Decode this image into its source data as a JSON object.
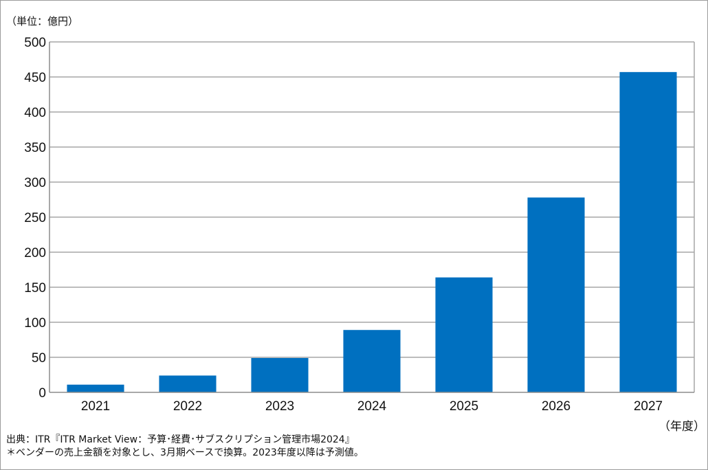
{
  "chart_data": {
    "type": "bar",
    "unit_label": "（単位：億円）",
    "x_unit_label": "（年度）",
    "categories": [
      "2021",
      "2022",
      "2023",
      "2024",
      "2025",
      "2026",
      "2027"
    ],
    "values": [
      11,
      24,
      49,
      89,
      164,
      278,
      457
    ],
    "ylim": [
      0,
      500
    ],
    "yticks": [
      0,
      50,
      100,
      150,
      200,
      250,
      300,
      350,
      400,
      450,
      500
    ],
    "grid": true,
    "bar_color": "#0070c0",
    "source": "出典：ITR『ITR Market View：予算･経費･サブスクリプション管理市場2024』",
    "note": "＊ベンダーの売上金額を対象とし、3月期ベースで換算。2023年度以降は予測値。"
  }
}
